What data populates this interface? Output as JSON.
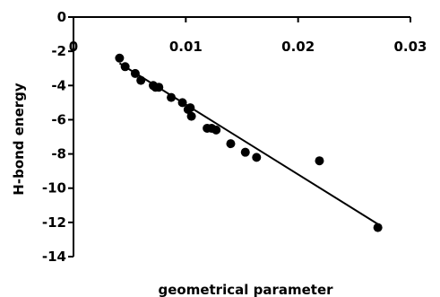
{
  "chart_data": {
    "type": "scatter",
    "xlabel": "geometrical parameter",
    "ylabel": "H-bond energy",
    "xlim": [
      0,
      0.03
    ],
    "ylim": [
      -14,
      0
    ],
    "x_ticks": [
      "0",
      "0.01",
      "0.02",
      "0.03"
    ],
    "y_ticks": [
      "0",
      "-2",
      "-4",
      "-6",
      "-8",
      "-10",
      "-12",
      "-14"
    ],
    "x_tick_values": [
      0,
      0.01,
      0.02,
      0.03
    ],
    "y_tick_values": [
      0,
      -2,
      -4,
      -6,
      -8,
      -10,
      -12,
      -14
    ],
    "grid": false,
    "legend": "none",
    "x_axis_position": "top",
    "series": [
      {
        "points": [
          {
            "x": 0.0041,
            "y": -2.4
          },
          {
            "x": 0.0046,
            "y": -2.9
          },
          {
            "x": 0.0055,
            "y": -3.3
          },
          {
            "x": 0.006,
            "y": -3.7
          },
          {
            "x": 0.0071,
            "y": -4.0
          },
          {
            "x": 0.0073,
            "y": -4.1
          },
          {
            "x": 0.0076,
            "y": -4.1
          },
          {
            "x": 0.0087,
            "y": -4.7
          },
          {
            "x": 0.0097,
            "y": -5.0
          },
          {
            "x": 0.0102,
            "y": -5.4
          },
          {
            "x": 0.0104,
            "y": -5.3
          },
          {
            "x": 0.0105,
            "y": -5.8
          },
          {
            "x": 0.0119,
            "y": -6.5
          },
          {
            "x": 0.0123,
            "y": -6.5
          },
          {
            "x": 0.0127,
            "y": -6.6
          },
          {
            "x": 0.014,
            "y": -7.4
          },
          {
            "x": 0.0153,
            "y": -7.9
          },
          {
            "x": 0.0163,
            "y": -8.2
          },
          {
            "x": 0.0219,
            "y": -8.4
          },
          {
            "x": 0.0271,
            "y": -12.3
          }
        ],
        "color": "#000000"
      }
    ],
    "trendline": {
      "type": "linear",
      "start": {
        "x": 0.0041,
        "y": -2.7
      },
      "end": {
        "x": 0.0271,
        "y": -12.1
      },
      "color": "#000000"
    }
  }
}
